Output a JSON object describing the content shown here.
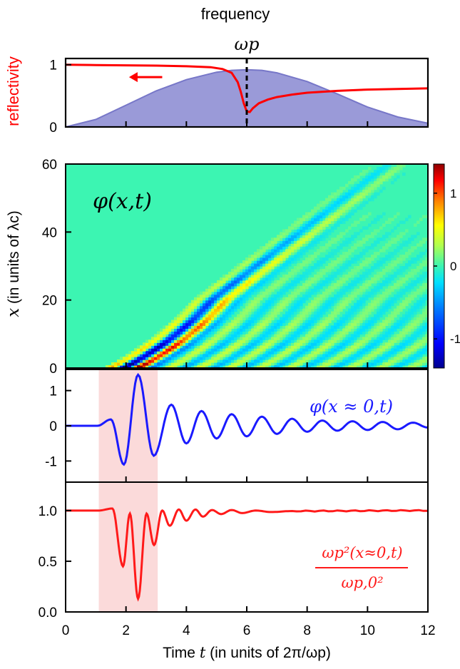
{
  "figure": {
    "title": "frequency",
    "top_marker": "ωp",
    "x_axis": {
      "label_prefix": "Time ",
      "label_var": "t",
      "label_units": " (in units of 2π/ωp)",
      "range": [
        0,
        12
      ],
      "ticks": [
        "0",
        "2",
        "4",
        "6",
        "8",
        "10",
        "12"
      ]
    },
    "highlight": {
      "x_range": [
        1.1,
        3.05
      ],
      "color": "#fbdada"
    }
  },
  "chart_data": [
    {
      "type": "area",
      "panel": "top",
      "ylabel": "reflectivity",
      "ylim": [
        0,
        1.1
      ],
      "yticks": [
        "0",
        "1"
      ],
      "series": [
        {
          "color": "#ff0000",
          "x": [
            0,
            1,
            2,
            3,
            4,
            4.8,
            5.2,
            5.5,
            5.7,
            5.8,
            5.9,
            6.0,
            6.1,
            6.2,
            6.4,
            6.7,
            7.0,
            7.5,
            8,
            9,
            10,
            11,
            12
          ],
          "values": [
            1.0,
            0.995,
            0.99,
            0.985,
            0.975,
            0.96,
            0.93,
            0.87,
            0.72,
            0.57,
            0.38,
            0.25,
            0.24,
            0.3,
            0.38,
            0.44,
            0.48,
            0.52,
            0.55,
            0.58,
            0.6,
            0.61,
            0.62
          ]
        },
        {
          "fill": "#9a9ad8",
          "edge": "#7777c8",
          "x": [
            0,
            1,
            2,
            3,
            4,
            5,
            5.5,
            6,
            6.5,
            7,
            8,
            9,
            10,
            11,
            12
          ],
          "values": [
            0.0,
            0.12,
            0.35,
            0.58,
            0.76,
            0.88,
            0.91,
            0.92,
            0.91,
            0.87,
            0.73,
            0.53,
            0.32,
            0.16,
            0.06
          ]
        }
      ],
      "annotation": {
        "arrow": "left",
        "color": "#ff0000",
        "x_from": 3.2,
        "x_to": 2.1,
        "y": 0.8
      }
    },
    {
      "type": "heatmap",
      "panel": "spacetime",
      "label": "φ(x,t)",
      "ylabel_prefix": "",
      "ylabel_var": "x",
      "ylabel_units": " (in units of λc)",
      "ylim": [
        0,
        60
      ],
      "yticks": [
        "0",
        "20",
        "40",
        "60"
      ],
      "colorbar": {
        "range": [
          -1.4,
          1.4
        ],
        "ticks": [
          {
            "v": 1,
            "label": "1"
          },
          {
            "v": 0,
            "label": "0"
          },
          {
            "v": -1,
            "label": "-1"
          }
        ]
      },
      "background_color": "#3cf5b2"
    },
    {
      "type": "line",
      "panel": "middle",
      "label": "φ(x ≈ 0,t)",
      "color": "#1a1aff",
      "ylim": [
        -1.6,
        1.6
      ],
      "yticks": [
        "1",
        "0",
        "-1"
      ],
      "peaks": [
        {
          "x": 1.05,
          "y": 0.0
        },
        {
          "x": 1.5,
          "y": 0.18
        },
        {
          "x": 1.93,
          "y": -1.1
        },
        {
          "x": 2.4,
          "y": 1.45
        },
        {
          "x": 2.92,
          "y": -0.85
        },
        {
          "x": 3.5,
          "y": 0.6
        },
        {
          "x": 4.0,
          "y": -0.5
        },
        {
          "x": 4.5,
          "y": 0.42
        },
        {
          "x": 5.0,
          "y": -0.36
        },
        {
          "x": 5.5,
          "y": 0.33
        },
        {
          "x": 6.0,
          "y": -0.3
        },
        {
          "x": 6.5,
          "y": 0.26
        },
        {
          "x": 7.0,
          "y": -0.23
        },
        {
          "x": 7.5,
          "y": 0.2
        },
        {
          "x": 8.0,
          "y": -0.17
        },
        {
          "x": 8.5,
          "y": 0.15
        },
        {
          "x": 9.0,
          "y": -0.14
        },
        {
          "x": 9.5,
          "y": 0.13
        },
        {
          "x": 10.0,
          "y": -0.12
        },
        {
          "x": 10.5,
          "y": 0.11
        },
        {
          "x": 11.0,
          "y": -0.1
        },
        {
          "x": 11.5,
          "y": 0.09
        },
        {
          "x": 12.0,
          "y": -0.05
        }
      ]
    },
    {
      "type": "line",
      "panel": "bottom",
      "label_num": "ωp²(x≈0,t)",
      "label_den": "ωp,0²",
      "color": "#ff1a1a",
      "ylim": [
        0,
        1.28
      ],
      "yticks": [
        "0.0",
        "0.5",
        "1.0"
      ],
      "peaks": [
        {
          "x": 1.1,
          "y": 1.0
        },
        {
          "x": 1.55,
          "y": 1.02
        },
        {
          "x": 1.9,
          "y": 0.45
        },
        {
          "x": 2.13,
          "y": 0.97
        },
        {
          "x": 2.4,
          "y": 0.13
        },
        {
          "x": 2.68,
          "y": 0.97
        },
        {
          "x": 2.93,
          "y": 0.66
        },
        {
          "x": 3.2,
          "y": 1.0
        },
        {
          "x": 3.45,
          "y": 0.85
        },
        {
          "x": 3.75,
          "y": 1.01
        },
        {
          "x": 4.0,
          "y": 0.9
        },
        {
          "x": 4.3,
          "y": 1.01
        },
        {
          "x": 4.55,
          "y": 0.94
        },
        {
          "x": 4.85,
          "y": 1.005
        },
        {
          "x": 5.15,
          "y": 0.965
        },
        {
          "x": 5.5,
          "y": 1.005
        },
        {
          "x": 5.85,
          "y": 0.975
        },
        {
          "x": 6.3,
          "y": 1.0
        },
        {
          "x": 6.8,
          "y": 0.985
        },
        {
          "x": 7.5,
          "y": 0.995
        },
        {
          "x": 12.0,
          "y": 1.0
        }
      ]
    }
  ]
}
